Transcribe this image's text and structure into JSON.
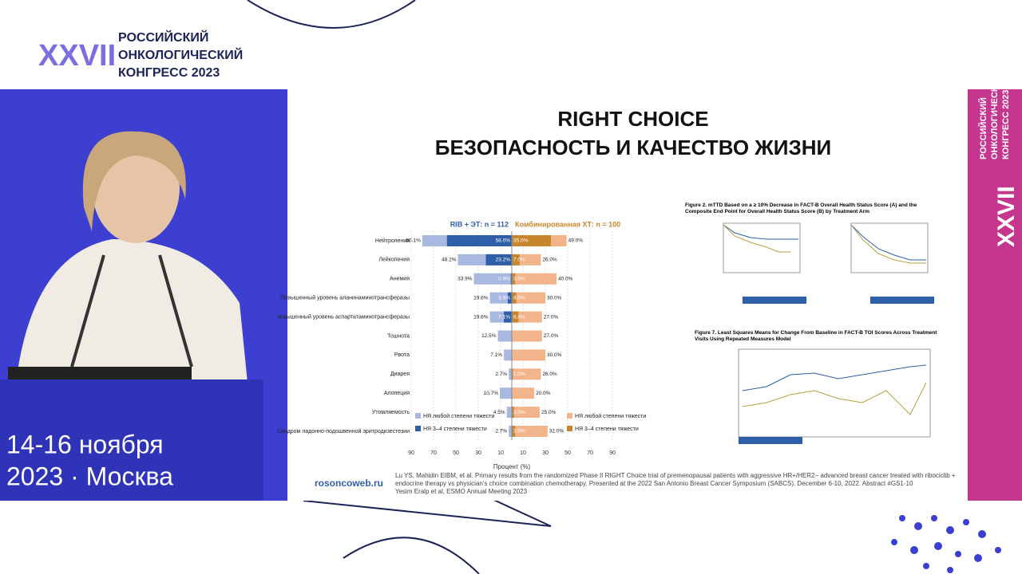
{
  "header": {
    "numeral": "XXVII",
    "line1": "РОССИЙСКИЙ",
    "line2": "ОНКОЛОГИЧЕСКИЙ",
    "line3": "КОНГРЕСС 2023"
  },
  "event": {
    "dates": "14-16 ноября",
    "place": "2023 · Москва"
  },
  "slide": {
    "title1": "RIGHT CHOICE",
    "title2": "БЕЗОПАСНОСТЬ И КАЧЕСТВО ЖИЗНИ",
    "site": "rosoncoweb.ru",
    "fig2": "Figure 2. mTTD Based on a ≥ 10% Decrease in FACT-B Overall Health Status Score (A) and the Composite End Point for Overall Health Status Score (B) by Treatment Arm",
    "fig7": "Figure 7. Least Squares Means for Change From Baseline in FACT-B TOI Scores Across Treatment Visits Using Repeated Measures Model",
    "citation": "Lu YS, Mahidin EIBM, et al. Primary results from the randomized Phase II RIGHT Choice trial of premenopausal patients with aggressive HR+/HER2− advanced breast cancer treated with ribociclib + endocrine therapy vs physician's choice combination chemotherapy. Presented at the 2022 San Antonio Breast Cancer Symposium (SABCS). December 6-10, 2022. Abstract #GS1-10",
    "citation2": "Yesim Eralp et al, ESMO Annual Meeting 2023"
  },
  "chart_data": {
    "type": "butterfly",
    "left_title": "RIB + ЭТ: n = 112",
    "right_title": "Комбинированная ХТ: n = 100",
    "xlabel": "Процент (%)",
    "categories": [
      "Нейтропения",
      "Лейкопения",
      "Анемия",
      "Повышенный уровень аланинаминотрансферазы",
      "повышенный уровень аспартатаминотрансферазы",
      "Тошнота",
      "Рвота",
      "Диарея",
      "Алопеция",
      "Утомляемость",
      "Синдром ладонно-подошвенной эритродизестезии"
    ],
    "xlim": [
      -90,
      90
    ],
    "xticks": [
      {
        "value": -90,
        "label": "90"
      },
      {
        "value": -70,
        "label": "70"
      },
      {
        "value": -50,
        "label": "50"
      },
      {
        "value": -30,
        "label": "30"
      },
      {
        "value": -10,
        "label": "10"
      },
      10,
      30,
      50,
      70,
      90
    ],
    "series": [
      {
        "name": "НЯ любой степени тяжести",
        "side": "left",
        "color": "#a9b8e0",
        "values": [
          80.1,
          48.2,
          33.9,
          19.6,
          19.6,
          12.5,
          7.1,
          2.7,
          10.7,
          4.5,
          2.7
        ],
        "value_labels": [
          "80.1%",
          "48.2%",
          "33.9%",
          "19.6%",
          "19.6%",
          "12.5%",
          "7.1%",
          "2.7%",
          "10.7%",
          "4.5%",
          "2.7%"
        ]
      },
      {
        "name": "НЯ 3–4 степени тяжести",
        "side": "left",
        "color": "#2e5fa8",
        "values": [
          58.0,
          23.2,
          0.9,
          3.6,
          7.1,
          null,
          null,
          null,
          null,
          null,
          null
        ],
        "value_labels": [
          "58.0%",
          "23.2%",
          "0.9%",
          "3.6%",
          "7.1%",
          null,
          null,
          null,
          null,
          null,
          null
        ]
      },
      {
        "name": "НЯ любой степени тяжести",
        "side": "right",
        "color": "#f2b48a",
        "values": [
          49.0,
          26.0,
          40.0,
          30.0,
          27.0,
          27.0,
          30.0,
          26.0,
          20.0,
          25.0,
          32.0
        ],
        "value_labels": [
          "49.0%",
          "26.0%",
          "40.0%",
          "30.0%",
          "27.0%",
          "27.0%",
          "30.0%",
          "26.0%",
          "20.0%",
          "25.0%",
          "32.0%"
        ]
      },
      {
        "name": "НЯ 3–4 степени тяжести",
        "side": "right",
        "color": "#c8862c",
        "values": [
          35.0,
          7.0,
          3.0,
          4.0,
          6.0,
          null,
          null,
          1.0,
          null,
          2.0,
          3.0
        ],
        "value_labels": [
          "35.0%",
          "7.0%",
          "3.0%",
          "4.0%",
          "6.0%",
          null,
          null,
          "1.0%",
          null,
          "2.0%",
          "3.0%"
        ]
      }
    ]
  }
}
